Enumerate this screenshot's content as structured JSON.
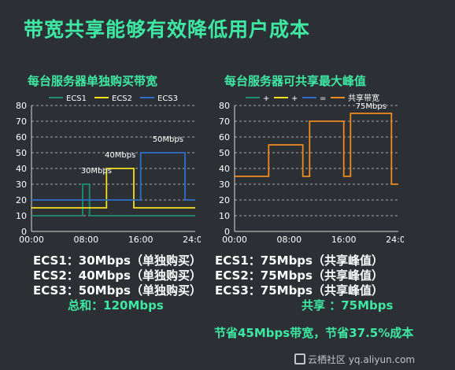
{
  "title": "带宽共享能够有效降低用户成本",
  "left": {
    "subtitle": "每台服务器单独购买带宽",
    "lines": [
      "ECS1：30Mbps（单独购买）",
      "ECS2：40Mbps（单独购买）",
      "ECS3：50Mbps（单独购买）"
    ],
    "total": "总和：120Mbps"
  },
  "right": {
    "subtitle": "每台服务器可共享最大峰值",
    "lines": [
      "ECS1：75Mbps（共享峰值）",
      "ECS2：75Mbps（共享峰值）",
      "ECS3：75Mbps（共享峰值）"
    ],
    "shared": "共享 ：75Mbps"
  },
  "savings": "节省45Mbps带宽，节省37.5%成本",
  "watermark": "云栖社区 yq.aliyun.com",
  "colors": {
    "accent": "#3ee8a2",
    "ecs1": "#1e8f6e",
    "ecs2": "#f2e21a",
    "ecs3": "#2f6fc9",
    "shared": "#ef8a1e",
    "background": "#2c3035"
  },
  "chart_data": [
    {
      "type": "line",
      "title": "每台服务器单独购买带宽",
      "x_ticks": [
        "00:00",
        "08:00",
        "16:00",
        "24:00"
      ],
      "xlim": [
        0,
        24
      ],
      "ylim": [
        0,
        80
      ],
      "y_ticks": [
        0,
        10,
        20,
        30,
        40,
        50,
        60,
        70,
        80
      ],
      "legend": "top",
      "grid": true,
      "series": [
        {
          "name": "ECS1",
          "color": "#1e8f6e",
          "x": [
            0,
            7.5,
            7.5,
            8.5,
            8.5,
            24
          ],
          "y": [
            10,
            10,
            30,
            30,
            10,
            10
          ]
        },
        {
          "name": "ECS2",
          "color": "#f2e21a",
          "x": [
            0,
            11,
            11,
            15,
            15,
            24
          ],
          "y": [
            15,
            15,
            40,
            40,
            15,
            15
          ]
        },
        {
          "name": "ECS3",
          "color": "#2f6fc9",
          "x": [
            0,
            16,
            16,
            22.5,
            22.5,
            24
          ],
          "y": [
            20,
            20,
            50,
            50,
            20,
            20
          ]
        }
      ],
      "annotations": [
        {
          "text": "30Mbps",
          "x": 9.5,
          "y": 37
        },
        {
          "text": "40Mbps",
          "x": 13,
          "y": 47
        },
        {
          "text": "50Mbps",
          "x": 20,
          "y": 57
        }
      ]
    },
    {
      "type": "line",
      "title": "每台服务器可共享最大峰值",
      "x_ticks": [
        "00:00",
        "08:00",
        "16:00",
        "24:00"
      ],
      "xlim": [
        0,
        24
      ],
      "ylim": [
        0,
        80
      ],
      "y_ticks": [
        0,
        10,
        20,
        30,
        40,
        50,
        60,
        70,
        80
      ],
      "legend_entries": [
        "+",
        "+",
        "=",
        "共享带宽"
      ],
      "legend_colors": [
        "#1e8f6e",
        "#f2e21a",
        "#2f6fc9",
        "#ef8a1e"
      ],
      "legend": "top",
      "grid": true,
      "series": [
        {
          "name": "共享带宽",
          "color": "#ef8a1e",
          "x": [
            0,
            5,
            5,
            10,
            10,
            11,
            11,
            16,
            16,
            17,
            17,
            23,
            23,
            24
          ],
          "y": [
            35,
            35,
            55,
            55,
            35,
            35,
            70,
            70,
            35,
            35,
            75,
            75,
            30,
            30
          ]
        }
      ],
      "annotations": [
        {
          "text": "75Mbps",
          "x": 20,
          "y": 78
        }
      ]
    }
  ]
}
